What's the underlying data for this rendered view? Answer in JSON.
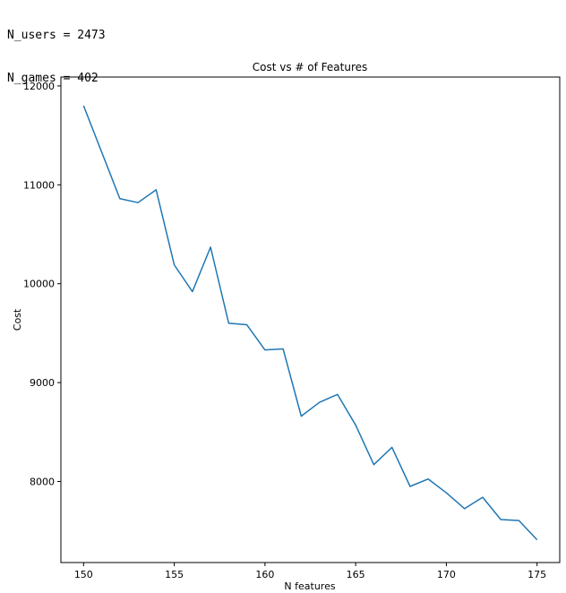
{
  "output_lines": [
    "N_users = 2473",
    "N_games = 402"
  ],
  "chart_data": {
    "type": "line",
    "title": "Cost vs # of Features",
    "xlabel": "N features",
    "ylabel": "Cost",
    "xlim": [
      148.75,
      176.25
    ],
    "ylim": [
      7180,
      12090
    ],
    "xticks": [
      150,
      155,
      160,
      165,
      170,
      175
    ],
    "yticks": [
      8000,
      9000,
      10000,
      11000,
      12000
    ],
    "line_color": "#1f77b4",
    "grid": false,
    "series": [
      {
        "x": [
          150,
          151,
          152,
          153,
          154,
          155,
          156,
          157,
          158,
          159,
          160,
          161,
          162,
          163,
          164,
          165,
          166,
          167,
          168,
          169,
          170,
          171,
          172,
          173,
          174,
          175
        ],
        "values": [
          11800,
          11330,
          10860,
          10820,
          10950,
          10190,
          9920,
          10370,
          9600,
          9585,
          9330,
          9340,
          8660,
          8800,
          8880,
          8570,
          8170,
          8345,
          7950,
          8025,
          7885,
          7725,
          7840,
          7615,
          7605,
          7410
        ]
      }
    ]
  }
}
